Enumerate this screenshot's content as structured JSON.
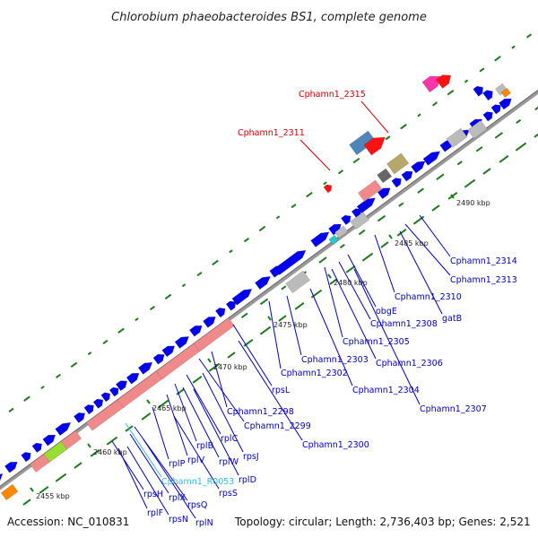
{
  "title": "Chlorobium phaeobacteroides BS1, complete genome",
  "footer": {
    "accession": "Accession: NC_010831",
    "topology": "Topology: circular; Length: 2,736,403 bp; Genes: 2,521"
  },
  "colors": {
    "cds": "#0000ee",
    "rrna_like": "#f08a8a",
    "unknown": "#bbbbbb",
    "dark_gray": "#666666",
    "olive": "#b5a86a",
    "steel_blue": "#4f86b9",
    "red": "#ff1111",
    "magenta": "#ff33aa",
    "orange": "#ff8800",
    "lime": "#99dd33",
    "cyan": "#22cccc",
    "backbone": "#888888",
    "gc_marks": "#1e7a1e",
    "label_blue": "#0000bb",
    "label_red": "#cc0000",
    "label_cyan": "#33bbdd"
  },
  "kbp_ticks": [
    "2455 kbp",
    "2460 kbp",
    "2465 kbp",
    "2470 kbp",
    "2475 kbp",
    "2480 kbp",
    "2485 kbp",
    "2490 kbp"
  ],
  "gene_labels": {
    "top": [
      "Cphamn1_2315",
      "Cphamn1_2311"
    ],
    "bottom": [
      "Cphamn1_2314",
      "Cphamn1_2313",
      "Cphamn1_2310",
      "gatB",
      "obgE",
      "Cphamn1_2308",
      "Cphamn1_2305",
      "Cphamn1_2306",
      "Cphamn1_2303",
      "Cphamn1_2304",
      "Cphamn1_2302",
      "Cphamn1_2307",
      "rpsL",
      "Cphamn1_2298",
      "Cphamn1_2299",
      "Cphamn1_2300",
      "rplC",
      "rpsJ",
      "rplB",
      "rplW",
      "rplV",
      "rplD",
      "rplP",
      "Cphamn1_R0053",
      "rpsS",
      "rpsQ",
      "rplX",
      "rpsH",
      "rplF",
      "rpsN",
      "rplN"
    ]
  }
}
